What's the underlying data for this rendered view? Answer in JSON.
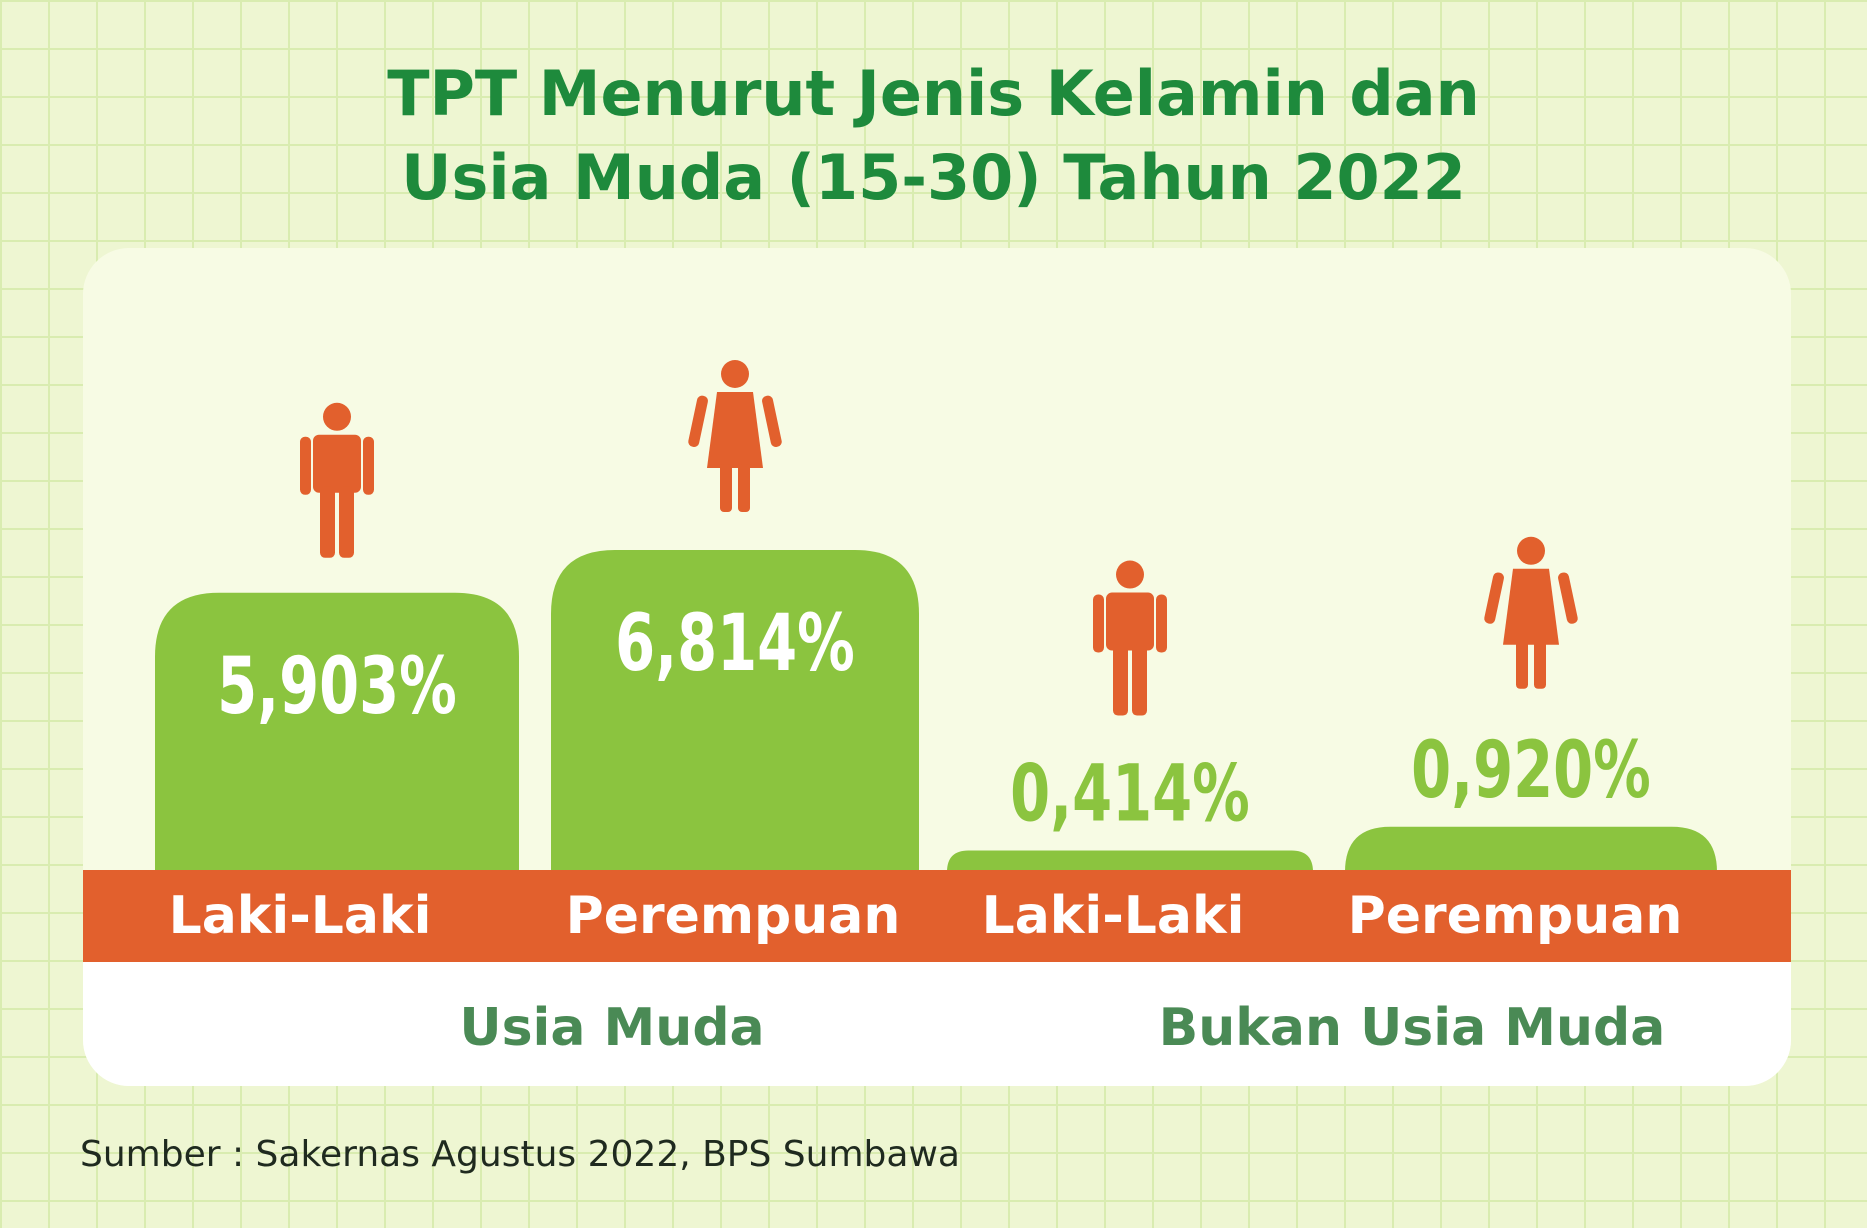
{
  "title": {
    "line1": "TPT Menurut Jenis Kelamin dan",
    "line2": "Usia Muda (15-30) Tahun 2022"
  },
  "colors": {
    "background": "#eef6d2",
    "title": "#1e8a3c",
    "bar": "#8bc43f",
    "band": "#e2602d",
    "person_icon": "#e2602d",
    "group_label": "#4a8a55"
  },
  "chart_data": {
    "type": "bar",
    "categories": [
      "Laki-Laki",
      "Perempuan",
      "Laki-Laki",
      "Perempuan"
    ],
    "groups": [
      {
        "name": "Usia Muda",
        "categories": [
          "Laki-Laki",
          "Perempuan"
        ]
      },
      {
        "name": "Bukan Usia Muda",
        "categories": [
          "Laki-Laki",
          "Perempuan"
        ]
      }
    ],
    "values": [
      5.903,
      6.814,
      0.414,
      0.92
    ],
    "value_labels": [
      "5,903%",
      "6,814%",
      "0,414%",
      "0,920%"
    ],
    "icons": [
      "male-icon",
      "female-icon",
      "male-icon",
      "female-icon"
    ],
    "unit": "%"
  },
  "source": "Sumber : Sakernas Agustus 2022, BPS Sumbawa"
}
